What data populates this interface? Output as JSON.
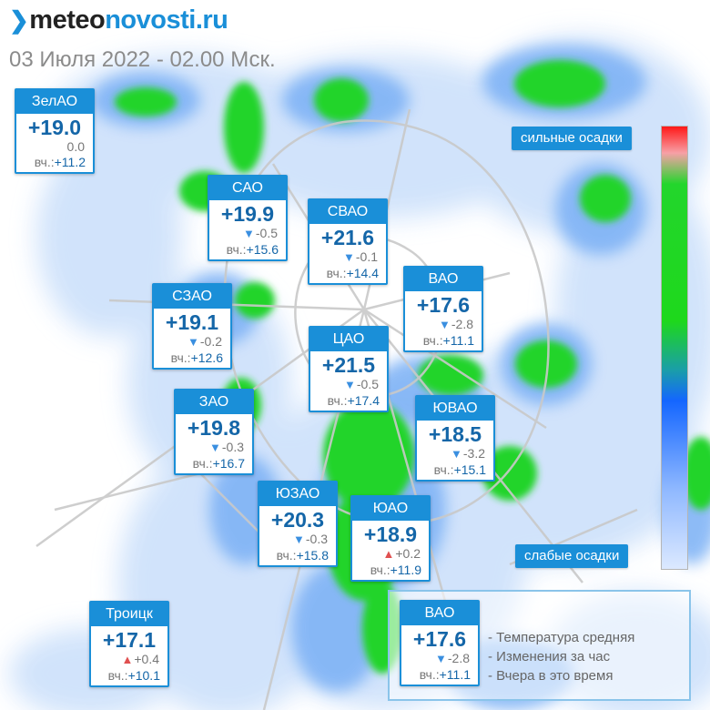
{
  "header": {
    "brand_part1": "meteo",
    "brand_part2": "novosti.ru",
    "subtitle": "03 Июля 2022 - 02.00 Мск."
  },
  "districts": [
    {
      "name": "ЗелАО",
      "temp": "+19.0",
      "change": "0.0",
      "trend": "none",
      "yesterday_label": "вч.:",
      "yesterday": "+11.2"
    },
    {
      "name": "САО",
      "temp": "+19.9",
      "change": "-0.5",
      "trend": "down",
      "yesterday_label": "вч.:",
      "yesterday": "+15.6"
    },
    {
      "name": "СВАО",
      "temp": "+21.6",
      "change": "-0.1",
      "trend": "down",
      "yesterday_label": "вч.:",
      "yesterday": "+14.4"
    },
    {
      "name": "ВАО",
      "temp": "+17.6",
      "change": "-2.8",
      "trend": "down",
      "yesterday_label": "вч.:",
      "yesterday": "+11.1"
    },
    {
      "name": "СЗАО",
      "temp": "+19.1",
      "change": "-0.2",
      "trend": "down",
      "yesterday_label": "вч.:",
      "yesterday": "+12.6"
    },
    {
      "name": "ЦАО",
      "temp": "+21.5",
      "change": "-0.5",
      "trend": "down",
      "yesterday_label": "вч.:",
      "yesterday": "+17.4"
    },
    {
      "name": "ЗАО",
      "temp": "+19.8",
      "change": "-0.3",
      "trend": "down",
      "yesterday_label": "вч.:",
      "yesterday": "+16.7"
    },
    {
      "name": "ЮВАО",
      "temp": "+18.5",
      "change": "-3.2",
      "trend": "down",
      "yesterday_label": "вч.:",
      "yesterday": "+15.1"
    },
    {
      "name": "ЮЗАО",
      "temp": "+20.3",
      "change": "-0.3",
      "trend": "down",
      "yesterday_label": "вч.:",
      "yesterday": "+15.8"
    },
    {
      "name": "ЮАО",
      "temp": "+18.9",
      "change": "+0.2",
      "trend": "up",
      "yesterday_label": "вч.:",
      "yesterday": "+11.9"
    },
    {
      "name": "Троицк",
      "temp": "+17.1",
      "change": "+0.4",
      "trend": "up",
      "yesterday_label": "вч.:",
      "yesterday": "+10.1"
    }
  ],
  "scale": {
    "high_label": "сильные осадки",
    "low_label": "слабые осадки",
    "colors": [
      "#ff1818",
      "#f7a0a6",
      "#23d62c",
      "#1466ff",
      "#dce9ff"
    ]
  },
  "legend": {
    "example": {
      "name": "ВАО",
      "temp": "+17.6",
      "change": "-2.8",
      "trend": "down",
      "yesterday_label": "вч.:",
      "yesterday": "+11.1"
    },
    "items": [
      "- Температура средняя",
      "- Изменения за час",
      "- Вчера в это время"
    ]
  },
  "colors": {
    "accent": "#1a8fd8",
    "temp_text": "#1466a8",
    "precip_green": "#22d42a",
    "precip_blue": "#2f7cf0",
    "arrow_down": "#3a8fe0",
    "arrow_up": "#e05050"
  }
}
